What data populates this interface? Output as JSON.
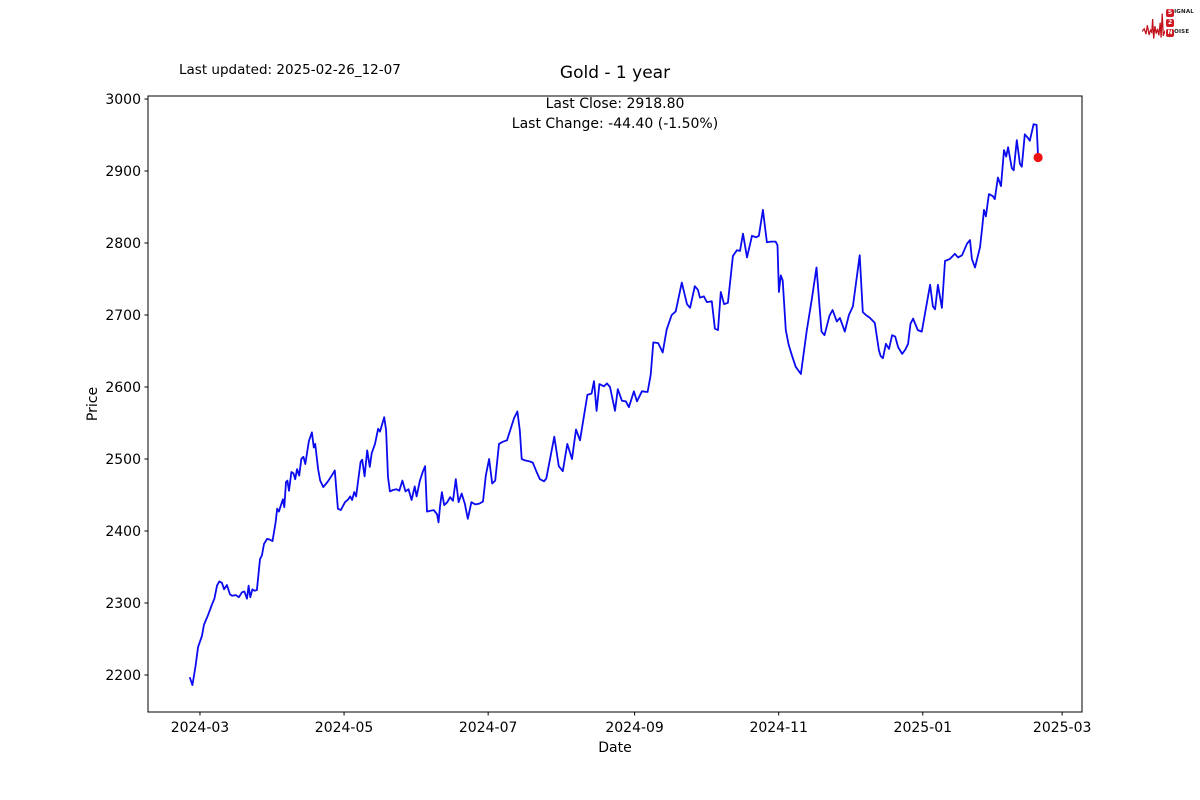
{
  "header": {
    "last_updated": "Last updated: 2025-02-26_12-07",
    "title": "Gold - 1 year",
    "annotation_line1": "Last Close: 2918.80",
    "annotation_line2": "Last Change: -44.40 (-1.50%)"
  },
  "logo": {
    "line1_initial": "S",
    "line1_rest": "IGNAL",
    "line2_initial": "2",
    "line3_initial": "N",
    "line3_rest": "OISE",
    "waveform_color": "#c1121c",
    "box_color": "#cf1b24"
  },
  "chart_data": {
    "type": "line",
    "title": "Gold - 1 year",
    "xlabel": "Date",
    "ylabel": "Price",
    "x_unit": "days since 2024-03-01",
    "x_range_dates": [
      "2024-02-26",
      "2025-02-25"
    ],
    "xlim": [
      -22,
      373.4
    ],
    "ylim": [
      2148.6,
      3004.2
    ],
    "grid": false,
    "legend": "none",
    "line_color": "#0b0bf0",
    "last_close": 2918.8,
    "last_change": "-44.40 (-1.50%)",
    "marker": {
      "x": 354.8,
      "y": 2918.8,
      "color": "#ee1111",
      "name": "last-close-dot"
    },
    "x_ticks": [
      {
        "label": "2024-03",
        "d": 0
      },
      {
        "label": "2024-05",
        "d": 61
      },
      {
        "label": "2024-07",
        "d": 122
      },
      {
        "label": "2024-09",
        "d": 184
      },
      {
        "label": "2024-11",
        "d": 245
      },
      {
        "label": "2025-01",
        "d": 306
      },
      {
        "label": "2025-03",
        "d": 365
      }
    ],
    "y_ticks": [
      2200,
      2300,
      2400,
      2500,
      2600,
      2700,
      2800,
      2900,
      3000
    ],
    "series": [
      {
        "name": "Gold price",
        "points": [
          [
            -4.2,
            2196
          ],
          [
            -3.2,
            2186
          ],
          [
            -1.9,
            2212
          ],
          [
            -0.8,
            2239
          ],
          [
            0.8,
            2254
          ],
          [
            1.7,
            2270
          ],
          [
            3.4,
            2283
          ],
          [
            5.1,
            2298
          ],
          [
            6.1,
            2306
          ],
          [
            7.2,
            2324
          ],
          [
            8.2,
            2330
          ],
          [
            9.3,
            2328
          ],
          [
            10.2,
            2319
          ],
          [
            11.4,
            2325
          ],
          [
            12.7,
            2312
          ],
          [
            13.6,
            2310
          ],
          [
            15.2,
            2311
          ],
          [
            16.5,
            2308
          ],
          [
            17.8,
            2315
          ],
          [
            18.8,
            2316
          ],
          [
            19.9,
            2306
          ],
          [
            20.6,
            2324
          ],
          [
            21.3,
            2308
          ],
          [
            22.2,
            2319
          ],
          [
            23.1,
            2317
          ],
          [
            24.1,
            2318
          ],
          [
            25.4,
            2361
          ],
          [
            26.2,
            2366
          ],
          [
            27.1,
            2382
          ],
          [
            28.4,
            2389
          ],
          [
            29.6,
            2388
          ],
          [
            30.7,
            2386
          ],
          [
            32,
            2412
          ],
          [
            32.7,
            2431
          ],
          [
            33.4,
            2427
          ],
          [
            34,
            2433
          ],
          [
            35.1,
            2444
          ],
          [
            35.7,
            2433
          ],
          [
            36.4,
            2468
          ],
          [
            37,
            2470
          ],
          [
            37.7,
            2456
          ],
          [
            38.7,
            2482
          ],
          [
            39.6,
            2480
          ],
          [
            40.3,
            2472
          ],
          [
            41.1,
            2486
          ],
          [
            42,
            2477
          ],
          [
            42.9,
            2500
          ],
          [
            43.8,
            2503
          ],
          [
            44.6,
            2493
          ],
          [
            46.1,
            2525
          ],
          [
            47.4,
            2537
          ],
          [
            48.2,
            2516
          ],
          [
            48.8,
            2521
          ],
          [
            50,
            2486
          ],
          [
            50.9,
            2470
          ],
          [
            52.2,
            2461
          ],
          [
            54,
            2468
          ],
          [
            55.6,
            2476
          ],
          [
            57.1,
            2484
          ],
          [
            58.4,
            2431
          ],
          [
            59.6,
            2429
          ],
          [
            61.4,
            2440
          ],
          [
            62.8,
            2444
          ],
          [
            63.6,
            2448
          ],
          [
            64.4,
            2443
          ],
          [
            65.3,
            2454
          ],
          [
            66.1,
            2448
          ],
          [
            68,
            2496
          ],
          [
            68.7,
            2499
          ],
          [
            69.7,
            2476
          ],
          [
            70.8,
            2512
          ],
          [
            71.9,
            2489
          ],
          [
            72.7,
            2508
          ],
          [
            74.1,
            2521
          ],
          [
            75.4,
            2542
          ],
          [
            76.2,
            2538
          ],
          [
            78,
            2558
          ],
          [
            78.8,
            2540
          ],
          [
            79.6,
            2475
          ],
          [
            80.4,
            2455
          ],
          [
            81.7,
            2457
          ],
          [
            83.1,
            2458
          ],
          [
            84.4,
            2456
          ],
          [
            85.7,
            2470
          ],
          [
            87,
            2455
          ],
          [
            88.3,
            2458
          ],
          [
            89.6,
            2443
          ],
          [
            90.9,
            2462
          ],
          [
            91.7,
            2448
          ],
          [
            93.1,
            2470
          ],
          [
            94.4,
            2483
          ],
          [
            95.3,
            2490
          ],
          [
            96.1,
            2427
          ],
          [
            97.5,
            2428
          ],
          [
            99,
            2429
          ],
          [
            100.4,
            2423
          ],
          [
            101,
            2412
          ],
          [
            101.6,
            2434
          ],
          [
            102.4,
            2454
          ],
          [
            103.4,
            2436
          ],
          [
            104.7,
            2440
          ],
          [
            105.9,
            2447
          ],
          [
            107.1,
            2442
          ],
          [
            108.3,
            2472
          ],
          [
            109.5,
            2440
          ],
          [
            110.8,
            2452
          ],
          [
            112.1,
            2438
          ],
          [
            113.4,
            2417
          ],
          [
            114.9,
            2440
          ],
          [
            116.6,
            2437
          ],
          [
            118.3,
            2438
          ],
          [
            119.8,
            2441
          ],
          [
            121,
            2477
          ],
          [
            122.4,
            2500
          ],
          [
            123.7,
            2466
          ],
          [
            125,
            2470
          ],
          [
            126.6,
            2521
          ],
          [
            128.3,
            2524
          ],
          [
            130,
            2526
          ],
          [
            133,
            2557
          ],
          [
            134.4,
            2566
          ],
          [
            135.4,
            2540
          ],
          [
            136.2,
            2500
          ],
          [
            137.6,
            2498
          ],
          [
            139.3,
            2497
          ],
          [
            140.9,
            2495
          ],
          [
            142.4,
            2483
          ],
          [
            143.9,
            2472
          ],
          [
            145.7,
            2469
          ],
          [
            146.6,
            2473
          ],
          [
            150,
            2531
          ],
          [
            151.9,
            2490
          ],
          [
            153.6,
            2483
          ],
          [
            155.5,
            2521
          ],
          [
            157.5,
            2500
          ],
          [
            159.2,
            2541
          ],
          [
            160.9,
            2526
          ],
          [
            164,
            2589
          ],
          [
            165.8,
            2591
          ],
          [
            166.8,
            2608
          ],
          [
            167.9,
            2567
          ],
          [
            169.1,
            2604
          ],
          [
            171,
            2601
          ],
          [
            172.3,
            2605
          ],
          [
            173.6,
            2600
          ],
          [
            175.7,
            2567
          ],
          [
            176.9,
            2597
          ],
          [
            178.6,
            2581
          ],
          [
            180.3,
            2580
          ],
          [
            181.6,
            2572
          ],
          [
            183.7,
            2594
          ],
          [
            185,
            2580
          ],
          [
            187.1,
            2594
          ],
          [
            189.5,
            2593
          ],
          [
            190.8,
            2617
          ],
          [
            191.9,
            2662
          ],
          [
            194,
            2661
          ],
          [
            195.9,
            2648
          ],
          [
            197.6,
            2680
          ],
          [
            199.7,
            2700
          ],
          [
            201.4,
            2705
          ],
          [
            204,
            2745
          ],
          [
            206.2,
            2715
          ],
          [
            207.5,
            2710
          ],
          [
            209.5,
            2740
          ],
          [
            210.8,
            2735
          ],
          [
            211.7,
            2724
          ],
          [
            213.3,
            2726
          ],
          [
            214.6,
            2718
          ],
          [
            216.7,
            2719
          ],
          [
            218,
            2681
          ],
          [
            219.3,
            2679
          ],
          [
            220.5,
            2732
          ],
          [
            221.9,
            2715
          ],
          [
            223.5,
            2717
          ],
          [
            225.6,
            2782
          ],
          [
            227.3,
            2790
          ],
          [
            228.6,
            2789
          ],
          [
            229.9,
            2813
          ],
          [
            231.6,
            2780
          ],
          [
            233.7,
            2810
          ],
          [
            235.4,
            2808
          ],
          [
            236.6,
            2810
          ],
          [
            238.3,
            2846
          ],
          [
            240,
            2801
          ],
          [
            241.6,
            2802
          ],
          [
            243.7,
            2802
          ],
          [
            244.5,
            2797
          ],
          [
            245.1,
            2732
          ],
          [
            245.9,
            2755
          ],
          [
            246.7,
            2748
          ],
          [
            248,
            2679
          ],
          [
            249.2,
            2659
          ],
          [
            250.6,
            2644
          ],
          [
            252.2,
            2628
          ],
          [
            254.4,
            2618
          ],
          [
            256.8,
            2677
          ],
          [
            259,
            2722
          ],
          [
            261,
            2766
          ],
          [
            263.1,
            2677
          ],
          [
            264.4,
            2672
          ],
          [
            266.5,
            2699
          ],
          [
            267.8,
            2707
          ],
          [
            269.6,
            2691
          ],
          [
            270.9,
            2696
          ],
          [
            273,
            2677
          ],
          [
            274.7,
            2700
          ],
          [
            276.4,
            2712
          ],
          [
            279.3,
            2783
          ],
          [
            280.6,
            2704
          ],
          [
            281.9,
            2700
          ],
          [
            283.6,
            2696
          ],
          [
            285.7,
            2689
          ],
          [
            287.4,
            2651
          ],
          [
            288.2,
            2643
          ],
          [
            289.1,
            2640
          ],
          [
            290.4,
            2660
          ],
          [
            291.7,
            2653
          ],
          [
            293,
            2672
          ],
          [
            294.3,
            2670
          ],
          [
            295.6,
            2655
          ],
          [
            297.3,
            2646
          ],
          [
            298.6,
            2652
          ],
          [
            299.8,
            2660
          ],
          [
            300.8,
            2688
          ],
          [
            301.9,
            2695
          ],
          [
            303.9,
            2679
          ],
          [
            305.6,
            2677
          ],
          [
            309.1,
            2742
          ],
          [
            310.3,
            2712
          ],
          [
            311.2,
            2708
          ],
          [
            312.4,
            2742
          ],
          [
            314.1,
            2710
          ],
          [
            315.4,
            2775
          ],
          [
            317.5,
            2778
          ],
          [
            319.6,
            2785
          ],
          [
            320.9,
            2780
          ],
          [
            322.6,
            2783
          ],
          [
            324.7,
            2799
          ],
          [
            326,
            2804
          ],
          [
            326.8,
            2778
          ],
          [
            328.1,
            2766
          ],
          [
            330.2,
            2794
          ],
          [
            331.1,
            2820
          ],
          [
            331.9,
            2846
          ],
          [
            332.7,
            2837
          ],
          [
            334,
            2868
          ],
          [
            335.7,
            2865
          ],
          [
            336.5,
            2861
          ],
          [
            337.8,
            2891
          ],
          [
            339.1,
            2879
          ],
          [
            340.4,
            2929
          ],
          [
            341.3,
            2920
          ],
          [
            342.1,
            2933
          ],
          [
            343.7,
            2904
          ],
          [
            344.5,
            2901
          ],
          [
            345.8,
            2943
          ],
          [
            347.1,
            2910
          ],
          [
            347.9,
            2906
          ],
          [
            349.2,
            2951
          ],
          [
            350.5,
            2946
          ],
          [
            351.3,
            2942
          ],
          [
            352.9,
            2965
          ],
          [
            354.2,
            2964
          ],
          [
            354.8,
            2918.8
          ]
        ]
      }
    ]
  }
}
